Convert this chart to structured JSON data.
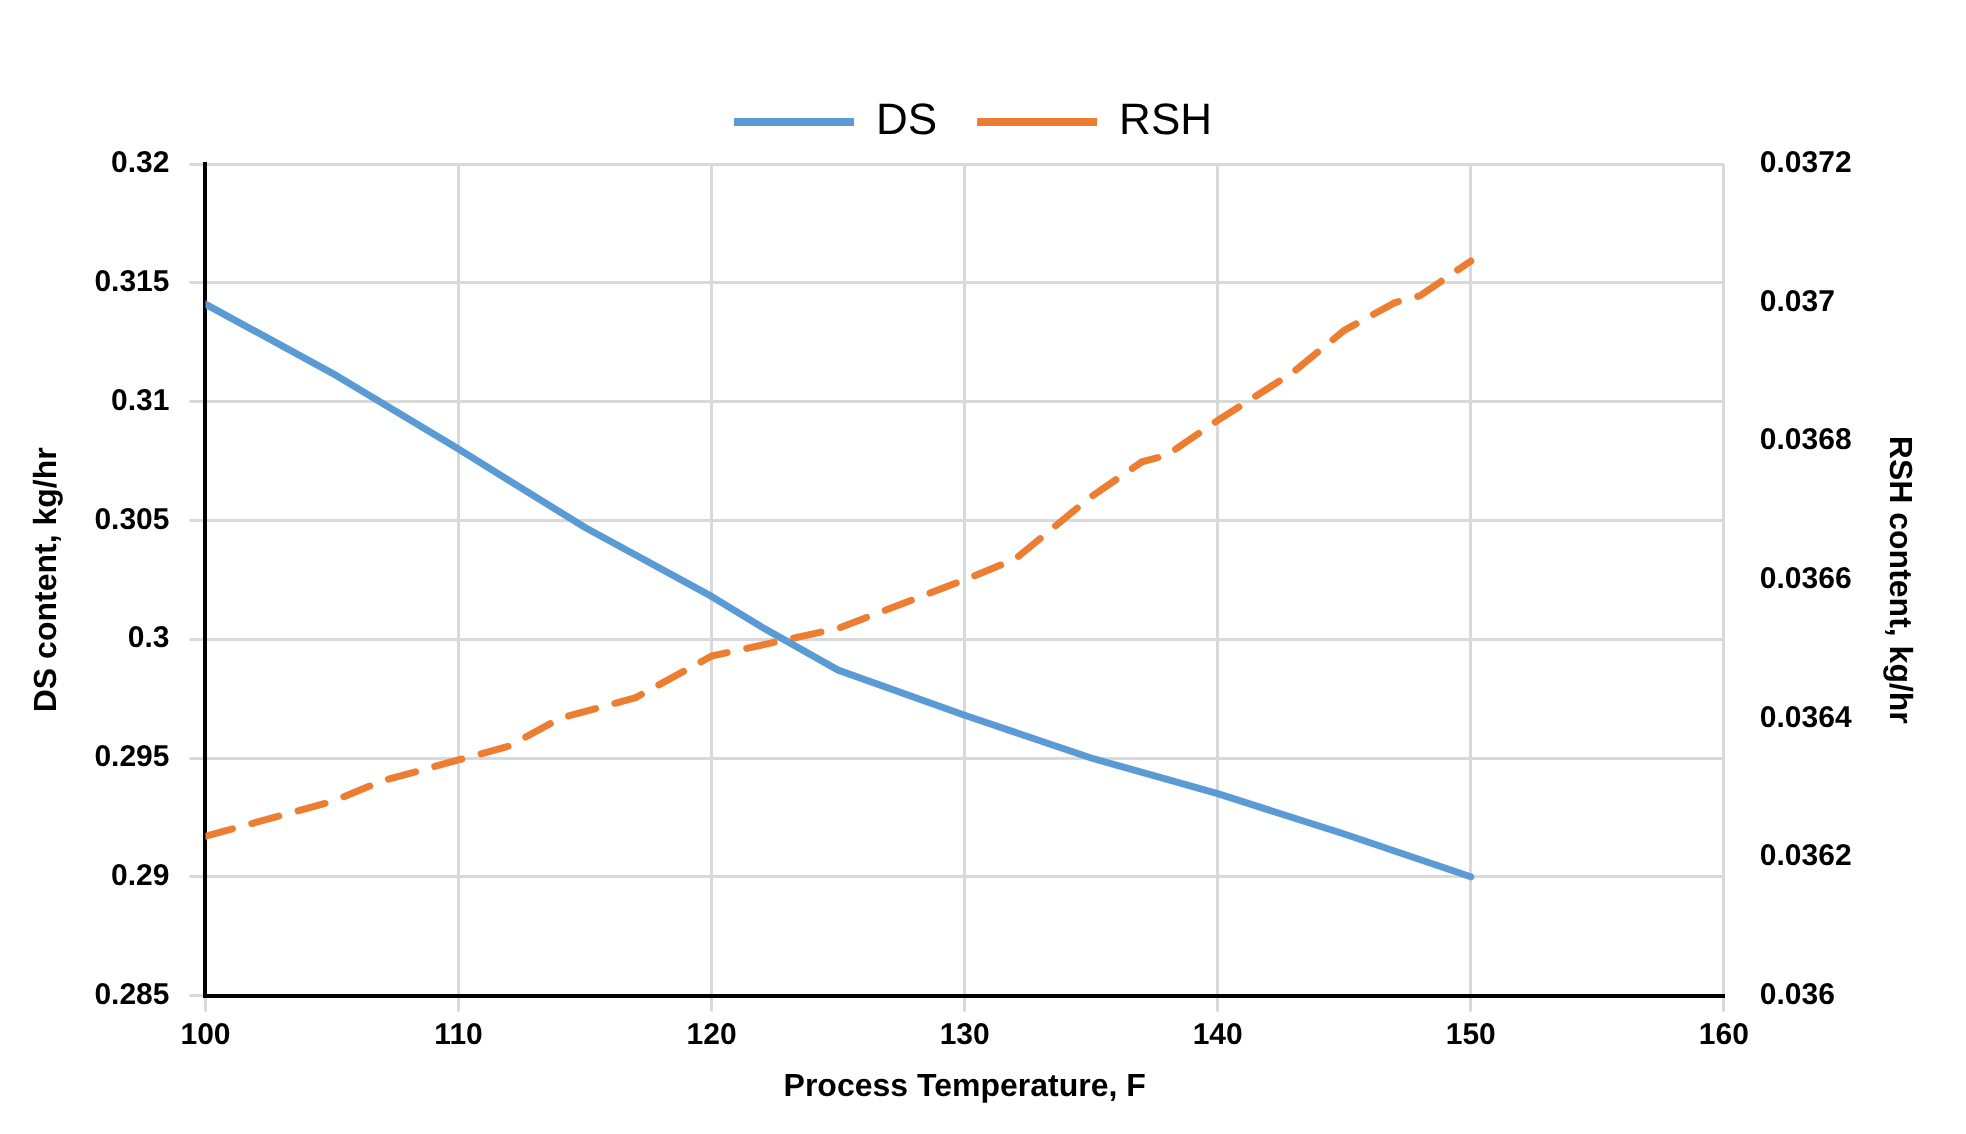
{
  "chart_data": {
    "type": "line",
    "xlabel": "Process Temperature, F",
    "ylabel": "DS content, kg/hr",
    "y2label": "RSH content, kg/hr",
    "xlim": [
      100,
      160
    ],
    "xticks": [
      100,
      110,
      120,
      130,
      140,
      150,
      160
    ],
    "ylim": [
      0.285,
      0.32
    ],
    "yticks": [
      0.285,
      0.29,
      0.295,
      0.3,
      0.305,
      0.31,
      0.315,
      0.32
    ],
    "y2lim": [
      0.036,
      0.0372
    ],
    "y2ticks": [
      0.036,
      0.0362,
      0.0364,
      0.0366,
      0.0368,
      0.037,
      0.0372
    ],
    "grid": true,
    "legend": "top",
    "marker": "none",
    "series": [
      {
        "name": "DS",
        "color": "#5b9bd5",
        "line_style": "solid",
        "x": [
          100,
          105,
          110,
          115,
          120,
          122,
          125,
          130,
          135,
          140,
          145,
          150
        ],
        "values": [
          0.3141,
          0.3112,
          0.308,
          0.3047,
          0.3018,
          0.3005,
          0.2987,
          0.2968,
          0.295,
          0.2935,
          0.2918,
          0.29
        ]
      },
      {
        "name": "RSH",
        "color": "#ed7d31",
        "line_style": "dashed",
        "axis": "y2",
        "x": [
          100,
          105,
          107,
          110,
          112,
          114,
          117,
          120,
          125,
          130,
          132,
          135,
          137,
          138,
          140,
          143,
          145,
          147,
          148,
          150
        ],
        "values": [
          0.03623,
          0.03628,
          0.03631,
          0.03634,
          0.03636,
          0.0364,
          0.03643,
          0.03649,
          0.03653,
          0.0366,
          0.03663,
          0.03672,
          0.03677,
          0.03678,
          0.03683,
          0.0369,
          0.03696,
          0.037,
          0.03701,
          0.03706
        ]
      }
    ]
  }
}
